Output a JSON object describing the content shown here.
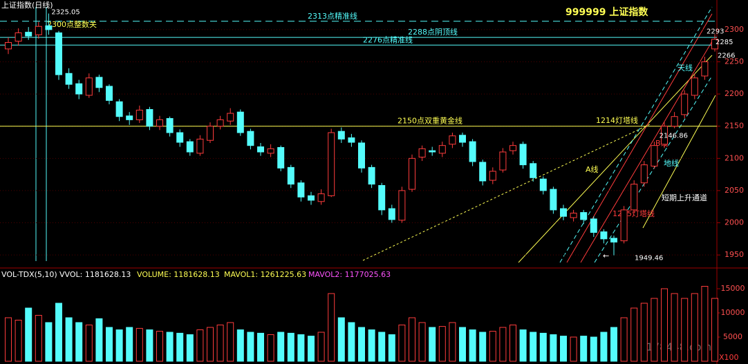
{
  "header": {
    "title": "上证指数(日线)",
    "symbol": "999999 上证指数"
  },
  "chart_data": [
    {
      "type": "candlestick",
      "open": [
        2270,
        2282,
        2296,
        2292,
        2306,
        2295,
        2232,
        2216,
        2198,
        2226,
        2212,
        2188,
        2166,
        2160,
        2176,
        2150,
        2162,
        2140,
        2126,
        2108,
        2128,
        2150,
        2158,
        2172,
        2142,
        2118,
        2108,
        2117,
        2086,
        2062,
        2042,
        2033,
        2042,
        2142,
        2132,
        2124,
        2086,
        2058,
        2022,
        2004,
        2052,
        2102,
        2112,
        2108,
        2122,
        2136,
        2126,
        2094,
        2066,
        2082,
        2112,
        2122,
        2092,
        2068,
        2052,
        2022,
        2008,
        2016,
        2006,
        1986,
        1976,
        1972,
        2020,
        2062,
        2088,
        2122,
        2150,
        2168,
        2198,
        2228,
        2270
      ],
      "high": [
        2288,
        2302,
        2304,
        2312,
        2325.05,
        2298,
        2240,
        2222,
        2232,
        2230,
        2215,
        2192,
        2172,
        2182,
        2180,
        2166,
        2165,
        2145,
        2130,
        2136,
        2156,
        2166,
        2178,
        2176,
        2146,
        2124,
        2122,
        2120,
        2090,
        2066,
        2048,
        2052,
        2146,
        2148,
        2138,
        2128,
        2090,
        2062,
        2028,
        2056,
        2106,
        2120,
        2118,
        2126,
        2140,
        2140,
        2130,
        2098,
        2086,
        2116,
        2126,
        2126,
        2096,
        2072,
        2056,
        2028,
        2020,
        2020,
        2010,
        1990,
        1980,
        2026,
        2066,
        2096,
        2126,
        2156,
        2172,
        2206,
        2232,
        2258,
        2293
      ],
      "low": [
        2262,
        2275,
        2284,
        2286,
        2292,
        2222,
        2208,
        2192,
        2194,
        2203,
        2184,
        2158,
        2152,
        2155,
        2144,
        2144,
        2134,
        2118,
        2104,
        2104,
        2124,
        2145,
        2152,
        2135,
        2114,
        2104,
        2102,
        2080,
        2054,
        2033,
        2028,
        2028,
        2040,
        2124,
        2118,
        2078,
        2054,
        2012,
        2000,
        2000,
        2048,
        2096,
        2104,
        2102,
        2116,
        2118,
        2088,
        2058,
        2060,
        2078,
        2106,
        2084,
        2064,
        2044,
        2014,
        2004,
        2002,
        1998,
        1978,
        1968,
        1949.46,
        1968,
        2016,
        2056,
        2084,
        2116,
        2146.86,
        2162,
        2192,
        2222,
        2266
      ],
      "close": [
        2280,
        2295,
        2290,
        2305,
        2300,
        2230,
        2215,
        2200,
        2225,
        2210,
        2190,
        2165,
        2160,
        2175,
        2150,
        2160,
        2140,
        2125,
        2110,
        2130,
        2150,
        2160,
        2170,
        2140,
        2120,
        2110,
        2115,
        2085,
        2060,
        2040,
        2035,
        2045,
        2140,
        2130,
        2125,
        2085,
        2060,
        2020,
        2005,
        2050,
        2100,
        2115,
        2110,
        2120,
        2135,
        2125,
        2095,
        2065,
        2080,
        2110,
        2120,
        2090,
        2070,
        2050,
        2020,
        2010,
        2015,
        2005,
        1985,
        1975,
        1970,
        2020,
        2060,
        2090,
        2120,
        2150,
        2165,
        2200,
        2225,
        2250,
        2285
      ],
      "up_color": "#ff3c3c",
      "down_color": "#54fcfc",
      "ylim": [
        1933,
        2346
      ],
      "yticks": [
        1950,
        2000,
        2050,
        2100,
        2150,
        2200,
        2250,
        2300
      ],
      "grid": true,
      "levels": [
        {
          "value": 2313,
          "label": "2313点精准线",
          "color": "#54fcfc",
          "style": "dashed"
        },
        {
          "value": 2300,
          "label": "2300点整数关",
          "color": "#ffff54",
          "style": "none"
        },
        {
          "value": 2288,
          "label": "2288点阴顶线",
          "color": "#54fcfc",
          "style": "solid"
        },
        {
          "value": 2276,
          "label": "2276点精准线",
          "color": "#54fcfc",
          "style": "solid"
        },
        {
          "value": 2150,
          "label": "2150点双重黄金线",
          "color": "#ffff54",
          "style": "solid"
        }
      ],
      "annotations": [
        "1214灯塔线",
        "A线",
        "B线",
        "天线",
        "地线",
        "1205灯塔线",
        "短期上升通道"
      ]
    },
    {
      "type": "bar",
      "title": "VOL-TDX(5,10)",
      "legend": [
        "VVOL: 1181628.13",
        "VOLUME: 1181628.13",
        "MAVOL1: 1261225.63",
        "MAVOL2: 1177025.63"
      ],
      "values": [
        9000,
        8500,
        11000,
        9500,
        8000,
        12000,
        9000,
        8000,
        7500,
        8800,
        7000,
        6500,
        7000,
        6800,
        6500,
        6200,
        6000,
        5800,
        5500,
        6500,
        7000,
        7500,
        8000,
        6500,
        6000,
        5800,
        5500,
        6000,
        5800,
        5500,
        5200,
        6000,
        14000,
        9000,
        8000,
        7000,
        6500,
        6000,
        5500,
        7500,
        9000,
        8000,
        7000,
        7200,
        8000,
        7000,
        6500,
        6000,
        6200,
        7000,
        7500,
        6500,
        6000,
        5800,
        5500,
        5200,
        5000,
        5200,
        5000,
        6000,
        7000,
        9000,
        11000,
        12000,
        13000,
        15000,
        14000,
        13000,
        14000,
        15500,
        13000
      ],
      "ylim": [
        0,
        19000
      ],
      "yticks": [
        5000,
        10000,
        15000
      ],
      "unit_label": "X100",
      "watermark": "178448.com"
    }
  ]
}
